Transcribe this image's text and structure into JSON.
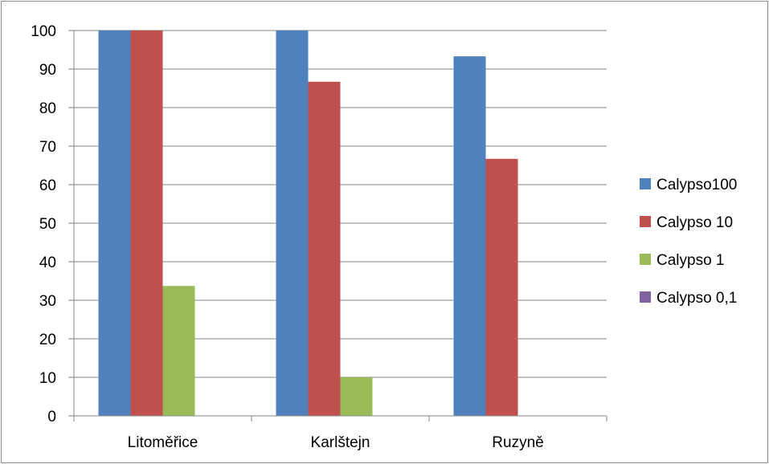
{
  "chart_data": {
    "type": "bar",
    "categories": [
      "Litoměřice",
      "Karlštejn",
      "Ruzyně"
    ],
    "series": [
      {
        "name": "Calypso100",
        "color": "#4f81bd",
        "values": [
          100,
          100,
          93.3
        ]
      },
      {
        "name": "Calypso 10",
        "color": "#c0504d",
        "values": [
          100,
          86.7,
          66.7
        ]
      },
      {
        "name": "Calypso 1",
        "color": "#9bbb59",
        "values": [
          33.7,
          10,
          0
        ]
      },
      {
        "name": "Calypso 0,1",
        "color": "#8064a2",
        "values": [
          0,
          0,
          0
        ]
      }
    ],
    "ylim": [
      0,
      100
    ],
    "yticks": [
      0,
      10,
      20,
      30,
      40,
      50,
      60,
      70,
      80,
      90,
      100
    ],
    "grid": true,
    "legend_position": "right"
  }
}
